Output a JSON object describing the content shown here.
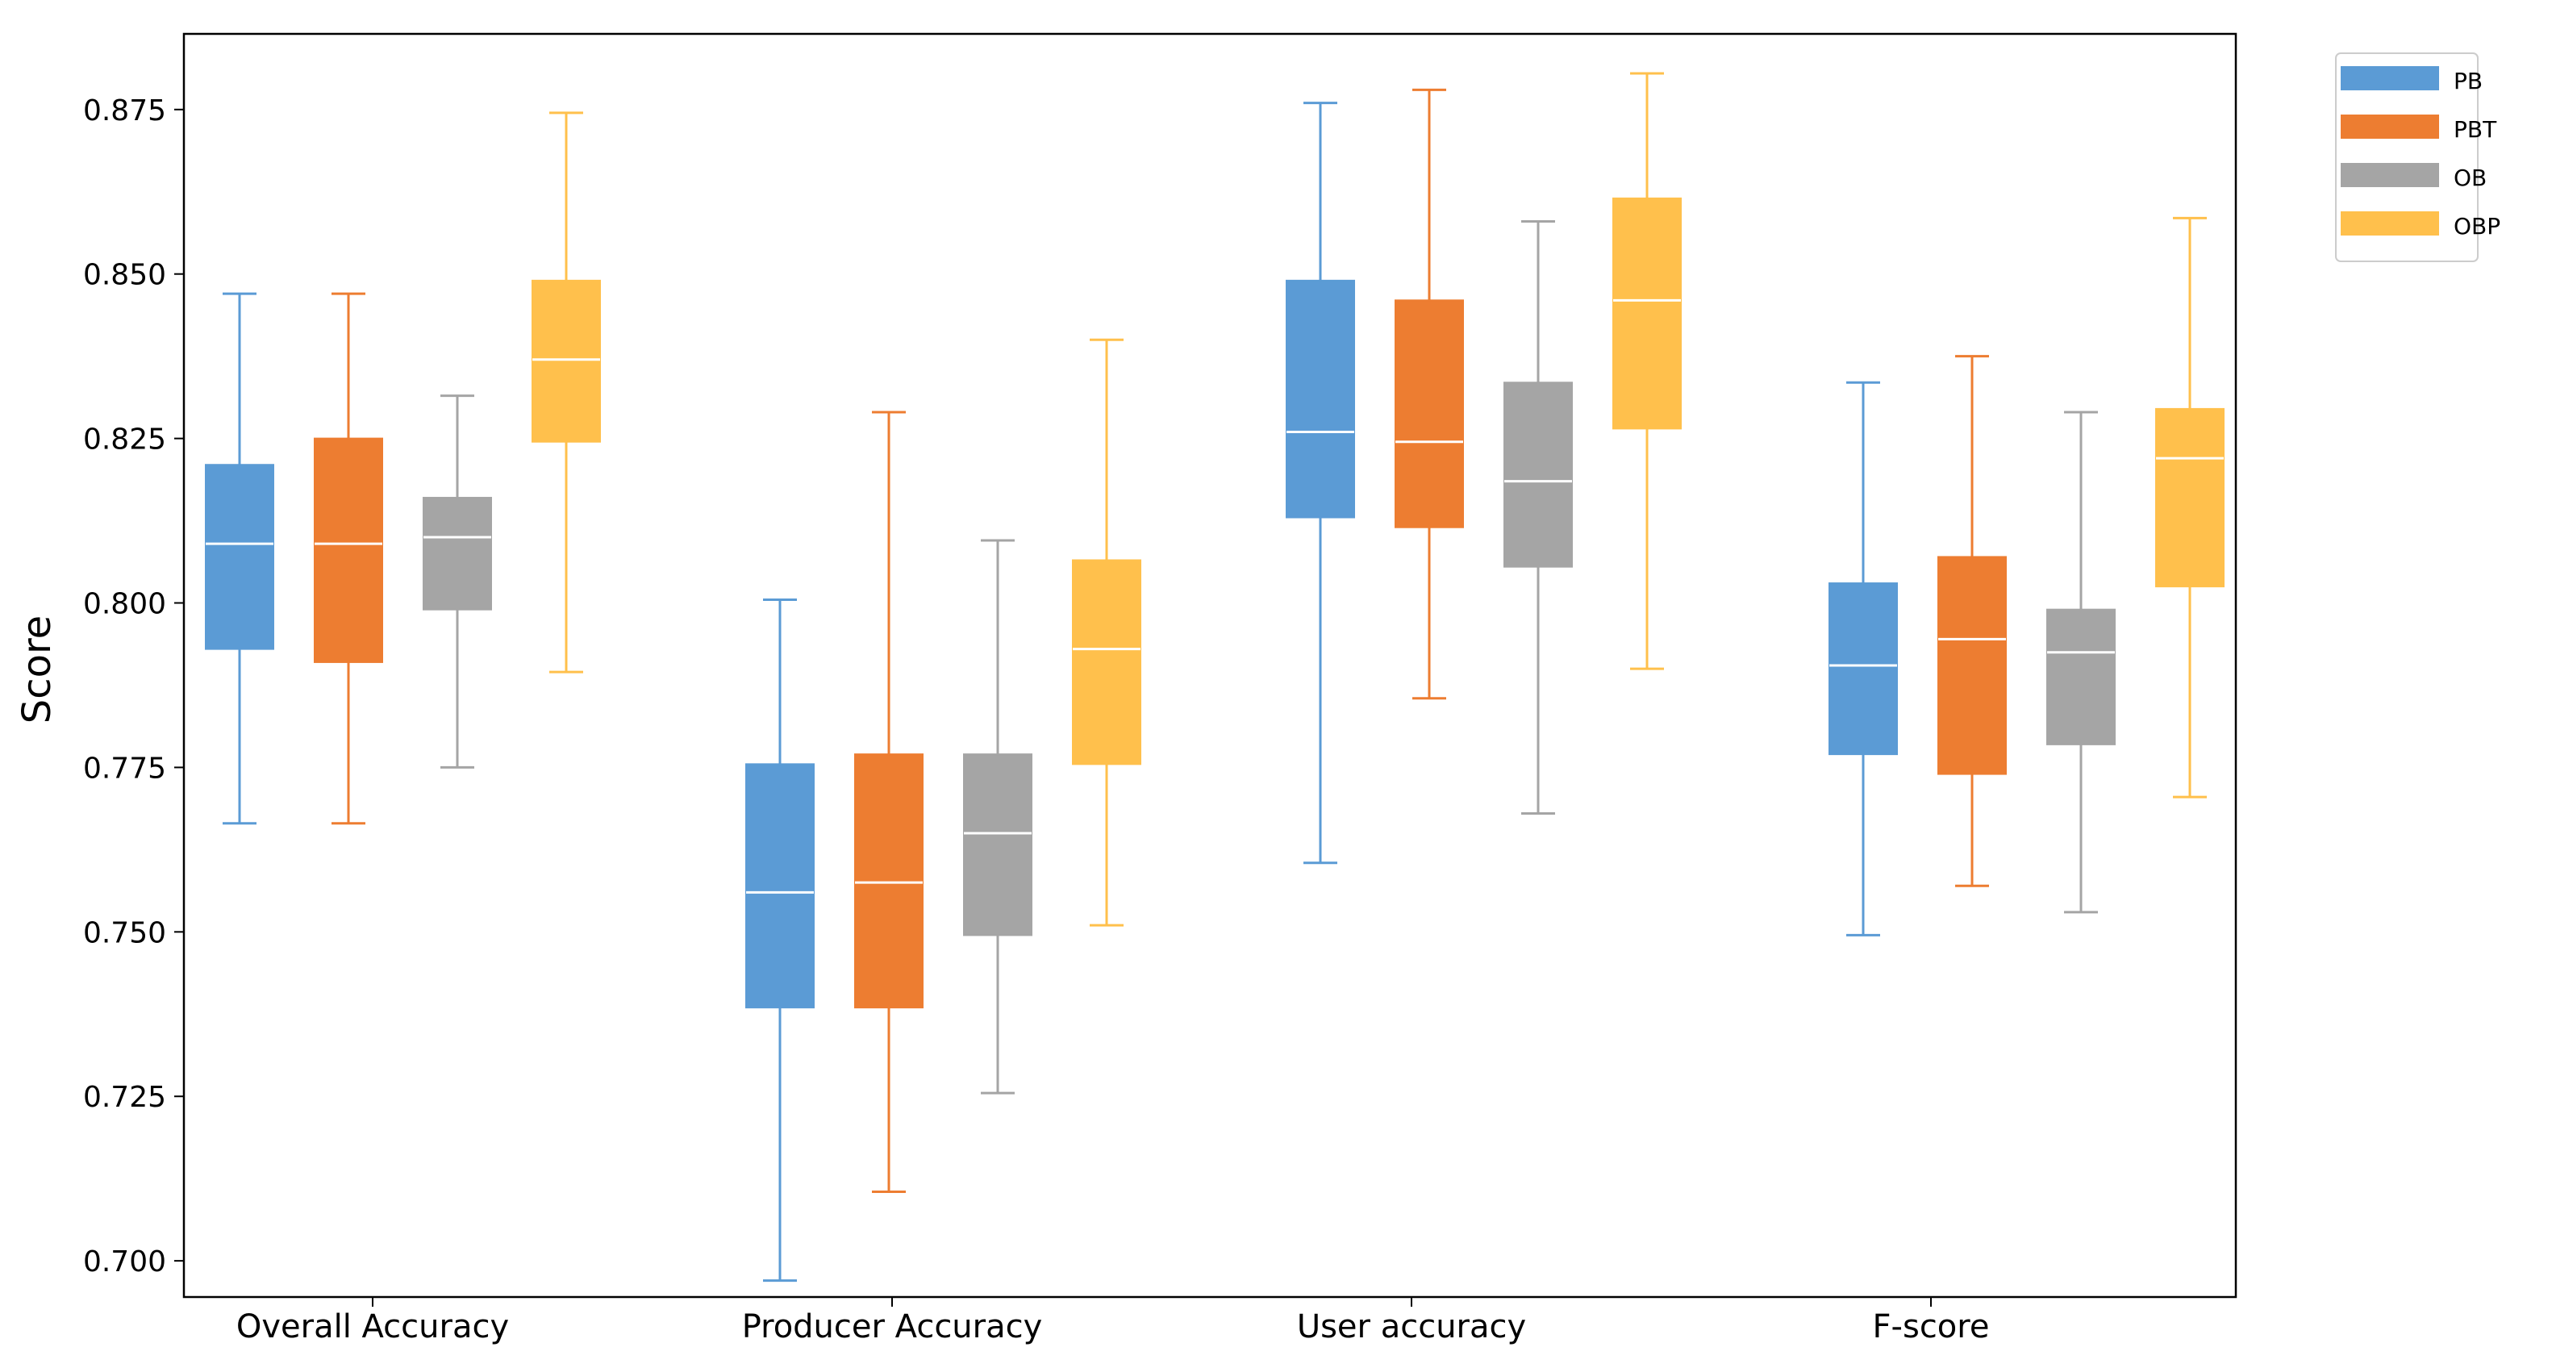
{
  "chart_data": {
    "type": "box",
    "title": "",
    "xlabel": "",
    "ylabel": "Score",
    "ylim": [
      0.6945,
      0.8865
    ],
    "yticks": [
      0.7,
      0.725,
      0.75,
      0.775,
      0.8,
      0.825,
      0.85,
      0.875
    ],
    "ytick_labels": [
      "0.700",
      "0.725",
      "0.750",
      "0.775",
      "0.800",
      "0.825",
      "0.850",
      "0.875"
    ],
    "categories": [
      "Overall Accuracy",
      "Producer Accuracy",
      "User accuracy",
      "F-score"
    ],
    "legend_position": "top-right, outside plot",
    "series": [
      {
        "name": "PB",
        "color": "#5b9bd5",
        "boxes": [
          {
            "whisker_low": 0.7665,
            "q1": 0.793,
            "median": 0.809,
            "q3": 0.821,
            "whisker_high": 0.847
          },
          {
            "whisker_low": 0.697,
            "q1": 0.7385,
            "median": 0.756,
            "q3": 0.7755,
            "whisker_high": 0.8005
          },
          {
            "whisker_low": 0.7605,
            "q1": 0.813,
            "median": 0.826,
            "q3": 0.849,
            "whisker_high": 0.876
          },
          {
            "whisker_low": 0.7495,
            "q1": 0.777,
            "median": 0.7905,
            "q3": 0.803,
            "whisker_high": 0.8335
          }
        ]
      },
      {
        "name": "PBT",
        "color": "#ed7d31",
        "boxes": [
          {
            "whisker_low": 0.7665,
            "q1": 0.791,
            "median": 0.809,
            "q3": 0.825,
            "whisker_high": 0.847
          },
          {
            "whisker_low": 0.7105,
            "q1": 0.7385,
            "median": 0.7575,
            "q3": 0.777,
            "whisker_high": 0.829
          },
          {
            "whisker_low": 0.7855,
            "q1": 0.8115,
            "median": 0.8245,
            "q3": 0.846,
            "whisker_high": 0.878
          },
          {
            "whisker_low": 0.757,
            "q1": 0.774,
            "median": 0.7945,
            "q3": 0.807,
            "whisker_high": 0.8375
          }
        ]
      },
      {
        "name": "OB",
        "color": "#a5a5a5",
        "boxes": [
          {
            "whisker_low": 0.775,
            "q1": 0.799,
            "median": 0.81,
            "q3": 0.816,
            "whisker_high": 0.8315
          },
          {
            "whisker_low": 0.7255,
            "q1": 0.7495,
            "median": 0.765,
            "q3": 0.777,
            "whisker_high": 0.8095
          },
          {
            "whisker_low": 0.768,
            "q1": 0.8055,
            "median": 0.8185,
            "q3": 0.8335,
            "whisker_high": 0.858
          },
          {
            "whisker_low": 0.753,
            "q1": 0.7785,
            "median": 0.7925,
            "q3": 0.799,
            "whisker_high": 0.829
          }
        ]
      },
      {
        "name": "OBP",
        "color": "#ffc04c",
        "boxes": [
          {
            "whisker_low": 0.7895,
            "q1": 0.8245,
            "median": 0.837,
            "q3": 0.849,
            "whisker_high": 0.8745
          },
          {
            "whisker_low": 0.751,
            "q1": 0.7755,
            "median": 0.793,
            "q3": 0.8065,
            "whisker_high": 0.84
          },
          {
            "whisker_low": 0.79,
            "q1": 0.8265,
            "median": 0.846,
            "q3": 0.8615,
            "whisker_high": 0.8805
          },
          {
            "whisker_low": 0.7705,
            "q1": 0.8025,
            "median": 0.822,
            "q3": 0.8295,
            "whisker_high": 0.8585
          }
        ]
      }
    ]
  }
}
